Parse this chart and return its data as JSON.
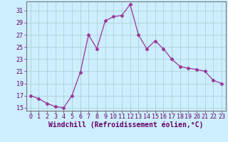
{
  "x": [
    0,
    1,
    2,
    3,
    4,
    5,
    6,
    7,
    8,
    9,
    10,
    11,
    12,
    13,
    14,
    15,
    16,
    17,
    18,
    19,
    20,
    21,
    22,
    23
  ],
  "y": [
    17.0,
    16.5,
    15.7,
    15.2,
    15.0,
    17.0,
    20.8,
    27.0,
    24.7,
    29.3,
    30.0,
    30.2,
    32.0,
    27.0,
    24.7,
    26.0,
    24.7,
    23.0,
    21.8,
    21.5,
    21.3,
    21.0,
    19.5,
    19.0
  ],
  "line_color": "#993399",
  "marker": "D",
  "marker_size": 2.5,
  "bg_color": "#cceeff",
  "grid_color": "#aacccc",
  "xlabel": "Windchill (Refroidissement éolien,°C)",
  "xlim": [
    -0.5,
    23.5
  ],
  "ylim": [
    14.5,
    32.5
  ],
  "yticks": [
    15,
    17,
    19,
    21,
    23,
    25,
    27,
    29,
    31
  ],
  "xticks": [
    0,
    1,
    2,
    3,
    4,
    5,
    6,
    7,
    8,
    9,
    10,
    11,
    12,
    13,
    14,
    15,
    16,
    17,
    18,
    19,
    20,
    21,
    22,
    23
  ],
  "tick_label_size": 6.0,
  "xlabel_size": 7.0,
  "axis_color": "#660066",
  "spine_color": "#777777"
}
